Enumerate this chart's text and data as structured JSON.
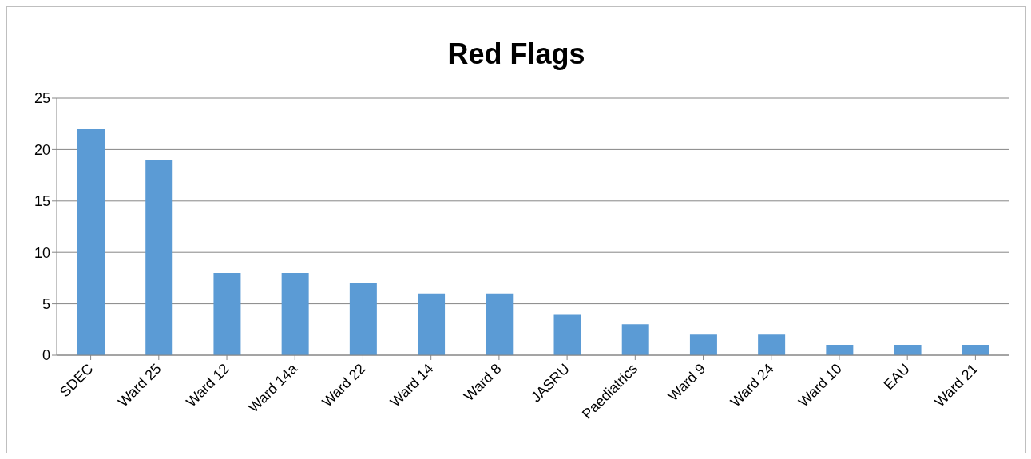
{
  "chart_data": {
    "type": "bar",
    "title": "Red Flags",
    "categories": [
      "SDEC",
      "Ward 25",
      "Ward 12",
      "Ward 14a",
      "Ward 22",
      "Ward 14",
      "Ward 8",
      "JASRU",
      "Paediatrics",
      "Ward 9",
      "Ward 24",
      "Ward 10",
      "EAU",
      "Ward 21"
    ],
    "values": [
      22,
      19,
      8,
      8,
      7,
      6,
      6,
      4,
      3,
      2,
      2,
      1,
      1,
      1
    ],
    "color": "#5b9bd5",
    "ylim": [
      0,
      25
    ],
    "yticks": [
      0,
      5,
      10,
      15,
      20,
      25
    ],
    "grid": "y",
    "legend": false
  }
}
